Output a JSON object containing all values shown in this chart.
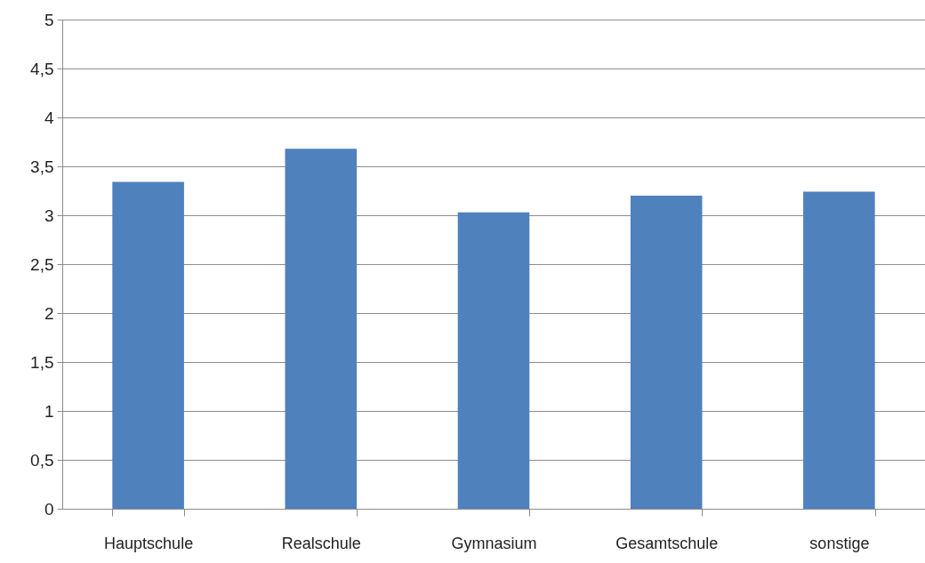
{
  "chart_data": {
    "type": "bar",
    "categories": [
      "Hauptschule",
      "Realschule",
      "Gymnasium",
      "Gesamtschule",
      "sonstige"
    ],
    "values": [
      3.34,
      3.68,
      3.03,
      3.2,
      3.24
    ],
    "color": "#4f81bd",
    "ylim": [
      0,
      5
    ],
    "yticks": [
      0,
      {
        "value": 0.5,
        "label": "0,5"
      },
      1,
      {
        "value": 1.5,
        "label": "1,5"
      },
      2,
      {
        "value": 2.5,
        "label": "2,5"
      },
      3,
      {
        "value": 3.5,
        "label": "3,5"
      },
      4,
      {
        "value": 4.5,
        "label": "4,5"
      },
      5
    ],
    "grid": "y"
  }
}
